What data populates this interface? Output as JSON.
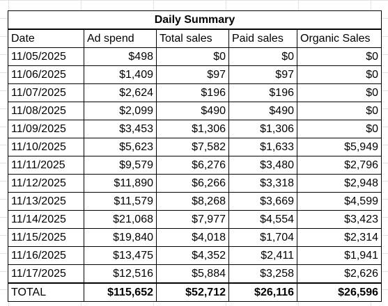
{
  "sheet": {
    "title": "Daily Summary",
    "headers": [
      "Date",
      "Ad spend",
      "Total sales",
      "Paid sales",
      "Organic Sales"
    ],
    "rows": [
      [
        "11/05/2025",
        "$498",
        "$0",
        "$0",
        "$0"
      ],
      [
        "11/06/2025",
        "$1,409",
        "$97",
        "$97",
        "$0"
      ],
      [
        "11/07/2025",
        "$2,624",
        "$196",
        "$196",
        "$0"
      ],
      [
        "11/08/2025",
        "$2,099",
        "$490",
        "$490",
        "$0"
      ],
      [
        "11/09/2025",
        "$3,453",
        "$1,306",
        "$1,306",
        "$0"
      ],
      [
        "11/10/2025",
        "$5,623",
        "$7,582",
        "$1,633",
        "$5,949"
      ],
      [
        "11/11/2025",
        "$9,579",
        "$6,276",
        "$3,480",
        "$2,796"
      ],
      [
        "11/12/2025",
        "$11,890",
        "$6,266",
        "$3,318",
        "$2,948"
      ],
      [
        "11/13/2025",
        "$11,579",
        "$8,268",
        "$3,669",
        "$4,599"
      ],
      [
        "11/14/2025",
        "$21,068",
        "$7,977",
        "$4,554",
        "$3,423"
      ],
      [
        "11/15/2025",
        "$19,840",
        "$4,018",
        "$1,704",
        "$2,314"
      ],
      [
        "11/16/2025",
        "$13,475",
        "$4,352",
        "$2,411",
        "$1,941"
      ],
      [
        "11/17/2025",
        "$12,516",
        "$5,884",
        "$3,258",
        "$2,626"
      ]
    ],
    "total": [
      "TOTAL",
      "$115,652",
      "$52,712",
      "$26,116",
      "$26,596"
    ]
  }
}
